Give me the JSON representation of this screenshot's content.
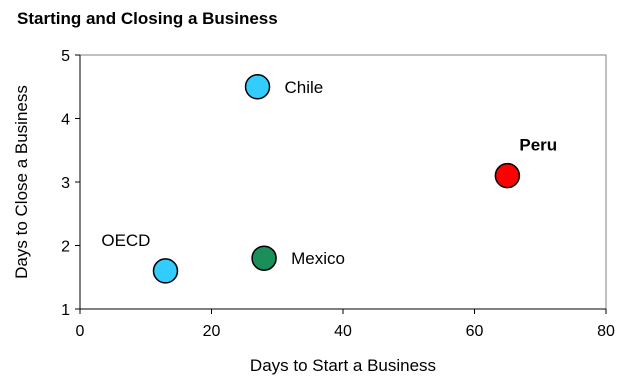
{
  "chart_data": {
    "type": "scatter",
    "title": "Starting and Closing a Business",
    "xlabel": "Days to Start a Business",
    "ylabel": "Days to Close a Business",
    "xlim": [
      0,
      80
    ],
    "ylim": [
      1,
      5
    ],
    "xticks": [
      "0",
      "20",
      "40",
      "60",
      "80"
    ],
    "yticks": [
      "1",
      "2",
      "3",
      "4",
      "5"
    ],
    "grid": false,
    "points": [
      {
        "label": "Chile",
        "x": 27,
        "y": 4.5,
        "color": "#33ccff",
        "bold": false,
        "label_pos": "right"
      },
      {
        "label": "Peru",
        "x": 65,
        "y": 3.1,
        "color": "#ff0000",
        "bold": true,
        "label_pos": "above-right"
      },
      {
        "label": "OECD",
        "x": 13,
        "y": 1.6,
        "color": "#33ccff",
        "bold": false,
        "label_pos": "above-left"
      },
      {
        "label": "Mexico",
        "x": 28,
        "y": 1.8,
        "color": "#1a8f5a",
        "bold": false,
        "label_pos": "right"
      }
    ]
  }
}
